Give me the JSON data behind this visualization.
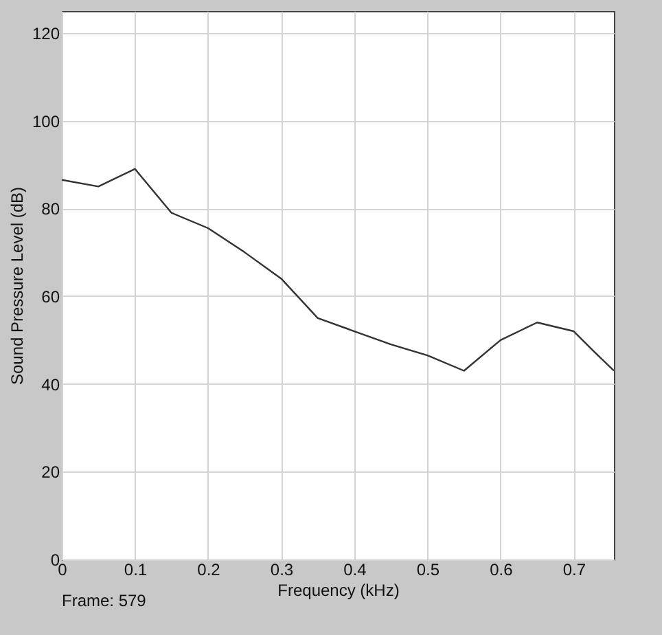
{
  "chart_data": {
    "type": "line",
    "xlabel": "Frequency (kHz)",
    "ylabel": "Sound Pressure Level (dB)",
    "annotations": [
      "Frame: 579"
    ],
    "x": [
      0,
      0.05,
      0.1,
      0.15,
      0.2,
      0.25,
      0.3,
      0.35,
      0.4,
      0.45,
      0.5,
      0.55,
      0.6,
      0.65,
      0.7,
      0.73,
      0.755
    ],
    "series": [
      {
        "color": "#333333",
        "values": [
          86.5,
          85,
          89,
          79,
          75.5,
          70,
          64,
          55,
          52,
          49,
          46.5,
          43,
          50,
          54,
          52,
          47,
          43
        ]
      }
    ],
    "xlim": [
      0,
      0.755
    ],
    "xticks": [
      0,
      0.1,
      0.2,
      0.3,
      0.4,
      0.5,
      0.6,
      0.7
    ],
    "ylim": [
      0,
      125
    ],
    "yticks": [
      0,
      20,
      40,
      60,
      80,
      100,
      120
    ],
    "grid": true,
    "marker": "none",
    "line_style": "solid"
  }
}
